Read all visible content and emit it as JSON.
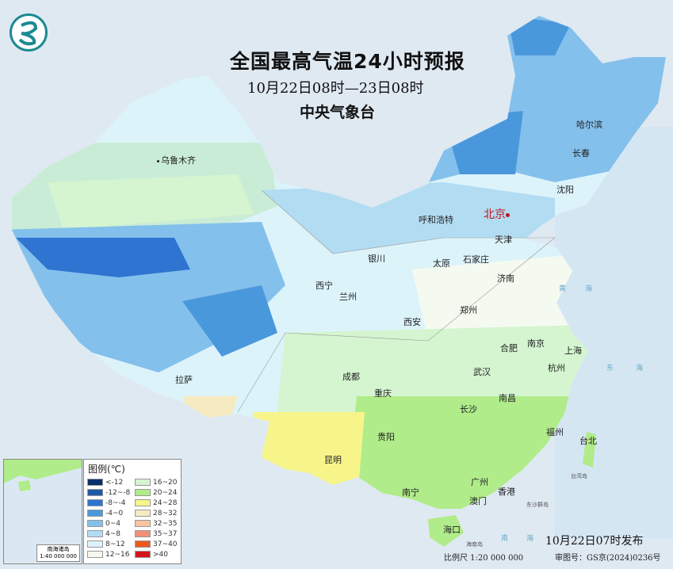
{
  "header": {
    "title": "全国最高气温24小时预报",
    "period": "10月22日08时—23日08时",
    "agency": "中央气象台"
  },
  "logo": {
    "icon": "cma-logo",
    "color": "#1c8a92"
  },
  "legend": {
    "title": "图例(℃)",
    "items": [
      {
        "label": "<-12",
        "color": "#08306b"
      },
      {
        "label": "-12~-8",
        "color": "#1c5aa6"
      },
      {
        "label": "-8~-4",
        "color": "#2f74d0"
      },
      {
        "label": "-4~0",
        "color": "#4a98dc"
      },
      {
        "label": "0~4",
        "color": "#84c0ec"
      },
      {
        "label": "4~8",
        "color": "#b2dcf2"
      },
      {
        "label": "8~12",
        "color": "#dcf3fa"
      },
      {
        "label": "12~16",
        "color": "#f5faf0"
      },
      {
        "label": "16~20",
        "color": "#d4f5d0"
      },
      {
        "label": "20~24",
        "color": "#b0ec8a"
      },
      {
        "label": "24~28",
        "color": "#f7f58a"
      },
      {
        "label": "28~32",
        "color": "#f6ebc0"
      },
      {
        "label": "32~35",
        "color": "#f7c4a0"
      },
      {
        "label": "35~37",
        "color": "#f0907a"
      },
      {
        "label": "37~40",
        "color": "#ea5a1e"
      },
      {
        "label": ">40",
        "color": "#d4141c"
      }
    ]
  },
  "cities": {
    "beijing": "北京",
    "urumqi": "乌鲁木齐",
    "hohhot": "呼和浩特",
    "tianjin": "天津",
    "shijiazhuang": "石家庄",
    "taiyuan": "太原",
    "yinchuan": "银川",
    "xining": "西宁",
    "lanzhou": "兰州",
    "jinan": "济南",
    "zhengzhou": "郑州",
    "xian": "西安",
    "hefei": "合肥",
    "nanjing": "南京",
    "shanghai": "上海",
    "hangzhou": "杭州",
    "wuhan": "武汉",
    "chengdu": "成都",
    "chongqing": "重庆",
    "lhasa": "拉萨",
    "changsha": "长沙",
    "nanchang": "南昌",
    "guiyang": "贵阳",
    "fuzhou": "福州",
    "taipei": "台北",
    "kunming": "昆明",
    "nanning": "南宁",
    "guangzhou": "广州",
    "hongkong": "香港",
    "macau": "澳门",
    "haikou": "海口",
    "harbin": "哈尔滨",
    "changchun": "长春",
    "shenyang": "沈阳"
  },
  "seas": {
    "huang": "黄",
    "hai": "海",
    "dong": "东",
    "dong_hai": "海",
    "nan": "南",
    "nan_hai": "海",
    "hainan": "海南岛",
    "taiwan": "台湾岛",
    "dongsha": "东沙群岛"
  },
  "inset": {
    "label": "南海诸岛",
    "scale": "1:40 000 000"
  },
  "footer": {
    "publish": "10月22日07时发布",
    "scale": "比例尺 1:20 000 000",
    "approval": "审图号：GS京(2024)0236号"
  }
}
